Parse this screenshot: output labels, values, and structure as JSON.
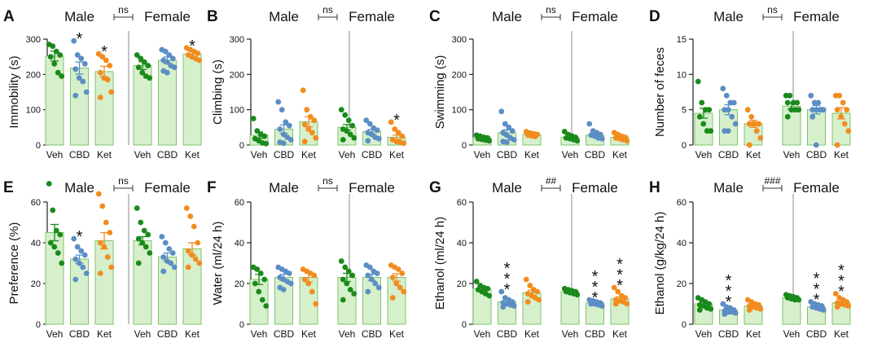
{
  "figure": {
    "group_colors": [
      "#1a8a1a",
      "#5b8ec4",
      "#f28c1e"
    ],
    "bar_fill": "#d6f0cc",
    "bar_stroke": "#7cc46a",
    "divider_color": "#888888"
  },
  "chart_data": [
    {
      "panel_label": "A",
      "type": "bar",
      "ylabel": "Immobility (s)",
      "ylim": [
        0,
        300
      ],
      "yticks": [
        "0",
        "100",
        "200",
        "300"
      ],
      "sex_labels": [
        "Male",
        "Female"
      ],
      "comparison": "ns",
      "categories": [
        "Veh",
        "CBD",
        "Ket",
        "Veh",
        "CBD",
        "Ket"
      ],
      "values": [
        252,
        218,
        208,
        225,
        240,
        258
      ],
      "errors": [
        14,
        17,
        15,
        11,
        9,
        8
      ],
      "stars": [
        "",
        "*",
        "*",
        "",
        "",
        "*"
      ],
      "points": [
        [
          285,
          280,
          265,
          255,
          250,
          230,
          205,
          195
        ],
        [
          295,
          255,
          245,
          230,
          215,
          190,
          180,
          150,
          140
        ],
        [
          258,
          250,
          240,
          225,
          205,
          190,
          185,
          150,
          135
        ],
        [
          255,
          245,
          235,
          225,
          220,
          205,
          195,
          190
        ],
        [
          270,
          265,
          255,
          245,
          240,
          235,
          225,
          220,
          210,
          205
        ],
        [
          275,
          270,
          265,
          260,
          255,
          250,
          245,
          240
        ]
      ]
    },
    {
      "panel_label": "B",
      "type": "bar",
      "ylabel": "Climbing (s)",
      "ylim": [
        0,
        300
      ],
      "yticks": [
        "0",
        "100",
        "200",
        "300"
      ],
      "sex_labels": [
        "Male",
        "Female"
      ],
      "comparison": "ns",
      "categories": [
        "Veh",
        "CBD",
        "Ket",
        "Veh",
        "CBD",
        "Ket"
      ],
      "values": [
        28,
        45,
        66,
        50,
        38,
        22
      ],
      "errors": [
        9,
        12,
        14,
        8,
        6,
        6
      ],
      "stars": [
        "",
        "",
        "",
        "",
        "",
        "*"
      ],
      "points": [
        [
          75,
          40,
          30,
          25,
          18,
          12,
          6,
          4
        ],
        [
          122,
          100,
          65,
          55,
          45,
          30,
          22,
          15,
          8,
          5
        ],
        [
          155,
          100,
          80,
          70,
          58,
          45,
          35,
          20,
          10
        ],
        [
          100,
          85,
          70,
          55,
          45,
          40,
          30,
          20,
          15
        ],
        [
          70,
          60,
          48,
          42,
          35,
          30,
          22,
          18,
          12
        ],
        [
          65,
          45,
          35,
          25,
          15,
          10,
          8,
          5
        ]
      ]
    },
    {
      "panel_label": "C",
      "type": "bar",
      "ylabel": "Swimming (s)",
      "ylim": [
        0,
        300
      ],
      "yticks": [
        "0",
        "100",
        "200",
        "300"
      ],
      "sex_labels": [
        "Male",
        "Female"
      ],
      "comparison": "ns",
      "categories": [
        "Veh",
        "CBD",
        "Ket",
        "Veh",
        "CBD",
        "Ket"
      ],
      "values": [
        20,
        35,
        30,
        22,
        28,
        22
      ],
      "errors": [
        3,
        8,
        3,
        3,
        5,
        3
      ],
      "stars": [
        "",
        "",
        "",
        "",
        "",
        ""
      ],
      "points": [
        [
          28,
          25,
          22,
          20,
          18,
          16,
          14,
          12
        ],
        [
          95,
          60,
          50,
          40,
          35,
          28,
          20,
          15,
          10,
          8
        ],
        [
          38,
          34,
          32,
          30,
          28,
          26,
          24
        ],
        [
          38,
          30,
          26,
          22,
          20,
          18,
          15,
          12
        ],
        [
          60,
          40,
          35,
          30,
          28,
          25,
          20,
          18
        ],
        [
          35,
          30,
          25,
          22,
          20,
          18,
          15,
          12
        ]
      ]
    },
    {
      "panel_label": "D",
      "type": "bar",
      "ylabel": "Number of feces",
      "ylim": [
        0,
        15
      ],
      "yticks": [
        "0",
        "5",
        "10",
        "15"
      ],
      "sex_labels": [
        "Male",
        "Female"
      ],
      "comparison": "ns",
      "categories": [
        "Veh",
        "CBD",
        "Ket",
        "Veh",
        "CBD",
        "Ket"
      ],
      "values": [
        4.5,
        5,
        3,
        5.5,
        5,
        4.5
      ],
      "errors": [
        0.7,
        0.7,
        0.5,
        0.4,
        0.6,
        0.8
      ],
      "stars": [
        "",
        "",
        "",
        "",
        "",
        ""
      ],
      "points": [
        [
          9,
          6,
          5,
          5,
          4,
          3,
          2,
          2
        ],
        [
          8,
          7,
          6,
          6,
          5,
          5,
          4,
          3,
          2,
          2
        ],
        [
          5,
          4,
          3,
          3,
          3,
          3,
          2,
          1,
          0
        ],
        [
          7,
          7,
          6,
          6,
          6,
          5,
          5,
          5,
          4
        ],
        [
          7,
          6,
          6,
          5,
          5,
          5,
          5,
          5,
          4,
          0
        ],
        [
          7,
          7,
          6,
          5,
          5,
          4,
          3,
          2,
          0
        ]
      ]
    },
    {
      "panel_label": "E",
      "type": "bar",
      "ylabel": "Preference (%)",
      "ylim": [
        0,
        60
      ],
      "yticks": [
        "0",
        "20",
        "40",
        "60"
      ],
      "sex_labels": [
        "Male",
        "Female"
      ],
      "comparison": "ns",
      "categories": [
        "Veh",
        "CBD",
        "Ket",
        "Veh",
        "CBD",
        "Ket"
      ],
      "values": [
        45,
        32,
        41,
        41,
        33,
        37
      ],
      "errors": [
        4,
        2,
        4,
        2,
        2,
        3
      ],
      "stars": [
        "",
        "*",
        "",
        "",
        "",
        ""
      ],
      "points": [
        [
          69,
          56,
          46,
          44,
          40,
          38,
          35,
          30
        ],
        [
          42,
          38,
          36,
          34,
          32,
          30,
          28,
          25,
          22
        ],
        [
          64,
          58,
          50,
          45,
          40,
          38,
          33,
          28,
          25
        ],
        [
          57,
          50,
          46,
          44,
          42,
          40,
          38,
          35,
          30
        ],
        [
          43,
          40,
          37,
          35,
          33,
          31,
          30,
          28,
          26
        ],
        [
          57,
          53,
          48,
          40,
          36,
          34,
          32,
          30,
          28
        ]
      ]
    },
    {
      "panel_label": "F",
      "type": "bar",
      "ylabel": "Water (ml/24 h)",
      "ylim": [
        0,
        60
      ],
      "yticks": [
        "0",
        "20",
        "40",
        "60"
      ],
      "sex_labels": [
        "Male",
        "Female"
      ],
      "comparison": "ns",
      "categories": [
        "Veh",
        "CBD",
        "Ket",
        "Veh",
        "CBD",
        "Ket"
      ],
      "values": [
        22,
        23,
        23,
        23,
        23,
        23
      ],
      "errors": [
        2.5,
        1.5,
        2.2,
        2,
        1.5,
        1.8
      ],
      "stars": [
        "",
        "",
        "",
        "",
        "",
        ""
      ],
      "points": [
        [
          28,
          27,
          25,
          22,
          20,
          16,
          12,
          9
        ],
        [
          28,
          27,
          26,
          25,
          23,
          22,
          21,
          20,
          18,
          17
        ],
        [
          27,
          26,
          25,
          24,
          22,
          20,
          16,
          10
        ],
        [
          31,
          28,
          26,
          24,
          22,
          20,
          17,
          15,
          12
        ],
        [
          29,
          28,
          26,
          25,
          24,
          22,
          20,
          18,
          16
        ],
        [
          29,
          28,
          27,
          25,
          23,
          20,
          18,
          16,
          13
        ]
      ]
    },
    {
      "panel_label": "G",
      "type": "bar",
      "ylabel": "Ethanol (ml/24 h)",
      "ylim": [
        0,
        60
      ],
      "yticks": [
        "0",
        "20",
        "40",
        "60"
      ],
      "sex_labels": [
        "Male",
        "Female"
      ],
      "comparison": "##",
      "categories": [
        "Veh",
        "CBD",
        "Ket",
        "Veh",
        "CBD",
        "Ket"
      ],
      "values": [
        17.5,
        11,
        15.5,
        16,
        10.5,
        12.5
      ],
      "errors": [
        1,
        0.8,
        1.2,
        0.5,
        0.6,
        0.9
      ],
      "stars": [
        "",
        "***",
        "",
        "",
        "***",
        "***"
      ],
      "points": [
        [
          21,
          19,
          18,
          17.5,
          17,
          16,
          15,
          14
        ],
        [
          16,
          13,
          12,
          11,
          10.5,
          10,
          9.5,
          9,
          8.5
        ],
        [
          22,
          19,
          17,
          16,
          15,
          14,
          13,
          12,
          11
        ],
        [
          17.5,
          17,
          16.5,
          16,
          16,
          15.5,
          15,
          14.5
        ],
        [
          12,
          11.5,
          11,
          10.5,
          10,
          10,
          9.5,
          9
        ],
        [
          18,
          16,
          14,
          13,
          12,
          11.5,
          11,
          10,
          10
        ]
      ]
    },
    {
      "panel_label": "H",
      "type": "bar",
      "ylabel": "Ethanol (g/kg/24 h)",
      "ylim": [
        0,
        60
      ],
      "yticks": [
        "0",
        "20",
        "40",
        "60"
      ],
      "sex_labels": [
        "Male",
        "Female"
      ],
      "comparison": "###",
      "categories": [
        "Veh",
        "CBD",
        "Ket",
        "Veh",
        "CBD",
        "Ket"
      ],
      "values": [
        10,
        7,
        9,
        13,
        8.5,
        10.5
      ],
      "errors": [
        0.8,
        0.5,
        0.6,
        0.4,
        0.5,
        0.7
      ],
      "stars": [
        "",
        "***",
        "",
        "",
        "***",
        "***"
      ],
      "points": [
        [
          13,
          12,
          11,
          10,
          9.5,
          9,
          8,
          7.5,
          7
        ],
        [
          10,
          8.5,
          8,
          7,
          6.5,
          6,
          6,
          5.5,
          5
        ],
        [
          12,
          11,
          10,
          9.5,
          9,
          8.5,
          8,
          7.5,
          7
        ],
        [
          14.5,
          14,
          13.5,
          13,
          13,
          12.5,
          12,
          12
        ],
        [
          11,
          10,
          9.5,
          9,
          8.5,
          8,
          7.5,
          7
        ],
        [
          15,
          13,
          12,
          11,
          10.5,
          10,
          9.5,
          9,
          8.5
        ]
      ]
    }
  ]
}
